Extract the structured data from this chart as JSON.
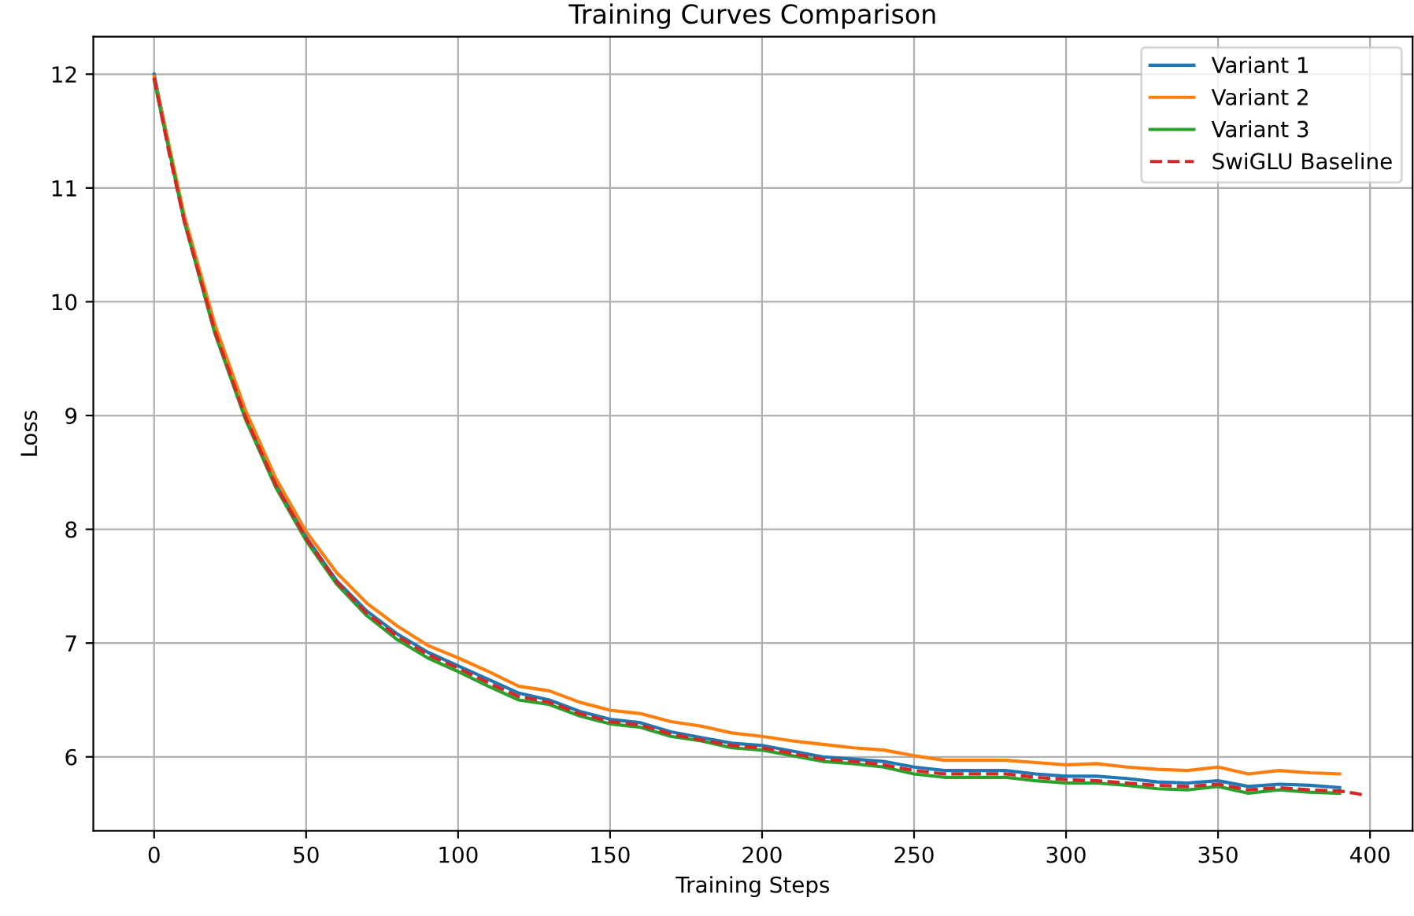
{
  "chart_data": {
    "type": "line",
    "title": "Training Curves Comparison",
    "xlabel": "Training Steps",
    "ylabel": "Loss",
    "xlim": [
      -20,
      414
    ],
    "ylim": [
      5.35,
      12.33
    ],
    "xticks": [
      0,
      50,
      100,
      150,
      200,
      250,
      300,
      350,
      400
    ],
    "yticks": [
      6,
      7,
      8,
      9,
      10,
      11,
      12
    ],
    "grid": true,
    "legend": "top right",
    "x": [
      0,
      10,
      20,
      30,
      40,
      50,
      60,
      70,
      80,
      90,
      100,
      110,
      120,
      130,
      140,
      150,
      160,
      170,
      180,
      190,
      200,
      210,
      220,
      230,
      240,
      250,
      260,
      270,
      280,
      290,
      300,
      310,
      320,
      330,
      340,
      350,
      360,
      370,
      380,
      390
    ],
    "series": [
      {
        "name": "Variant 1",
        "color": "#1f77b4",
        "line_style": "solid",
        "values": [
          12.0,
          10.7,
          9.75,
          9.0,
          8.4,
          7.93,
          7.55,
          7.28,
          7.08,
          6.92,
          6.8,
          6.68,
          6.56,
          6.5,
          6.4,
          6.33,
          6.3,
          6.22,
          6.17,
          6.12,
          6.1,
          6.05,
          6.0,
          5.98,
          5.96,
          5.91,
          5.88,
          5.88,
          5.88,
          5.85,
          5.83,
          5.83,
          5.81,
          5.78,
          5.77,
          5.79,
          5.74,
          5.76,
          5.75,
          5.73
        ]
      },
      {
        "name": "Variant 2",
        "color": "#ff7f0e",
        "line_style": "solid",
        "values": [
          11.98,
          10.75,
          9.8,
          9.05,
          8.45,
          7.98,
          7.62,
          7.35,
          7.15,
          6.98,
          6.87,
          6.75,
          6.62,
          6.58,
          6.48,
          6.41,
          6.38,
          6.31,
          6.27,
          6.21,
          6.18,
          6.14,
          6.11,
          6.08,
          6.06,
          6.01,
          5.97,
          5.97,
          5.97,
          5.95,
          5.93,
          5.94,
          5.91,
          5.89,
          5.88,
          5.91,
          5.85,
          5.88,
          5.86,
          5.85
        ]
      },
      {
        "name": "Variant 3",
        "color": "#2ca02c",
        "line_style": "solid",
        "values": [
          11.95,
          10.7,
          9.72,
          8.97,
          8.37,
          7.9,
          7.52,
          7.24,
          7.03,
          6.87,
          6.75,
          6.62,
          6.5,
          6.46,
          6.36,
          6.29,
          6.26,
          6.18,
          6.14,
          6.08,
          6.06,
          6.01,
          5.96,
          5.94,
          5.91,
          5.85,
          5.82,
          5.82,
          5.82,
          5.79,
          5.77,
          5.77,
          5.75,
          5.72,
          5.71,
          5.74,
          5.68,
          5.71,
          5.69,
          5.68
        ]
      },
      {
        "name": "SwiGLU Baseline",
        "color": "#d62728",
        "line_style": "dashed",
        "x": [
          0,
          5,
          10,
          20,
          30,
          40,
          50,
          60,
          70,
          80,
          90,
          100,
          110,
          120,
          130,
          140,
          150,
          160,
          170,
          180,
          190,
          200,
          210,
          220,
          230,
          240,
          250,
          260,
          270,
          280,
          290,
          300,
          310,
          320,
          330,
          340,
          350,
          360,
          370,
          380,
          390,
          395,
          399
        ],
        "values": [
          11.97,
          11.3,
          10.7,
          9.74,
          8.99,
          8.39,
          7.92,
          7.54,
          7.26,
          7.06,
          6.9,
          6.78,
          6.65,
          6.53,
          6.48,
          6.38,
          6.31,
          6.28,
          6.2,
          6.15,
          6.1,
          6.08,
          6.03,
          5.98,
          5.96,
          5.93,
          5.88,
          5.85,
          5.85,
          5.85,
          5.82,
          5.8,
          5.79,
          5.77,
          5.75,
          5.74,
          5.76,
          5.71,
          5.73,
          5.71,
          5.7,
          5.68,
          5.66
        ]
      }
    ]
  }
}
